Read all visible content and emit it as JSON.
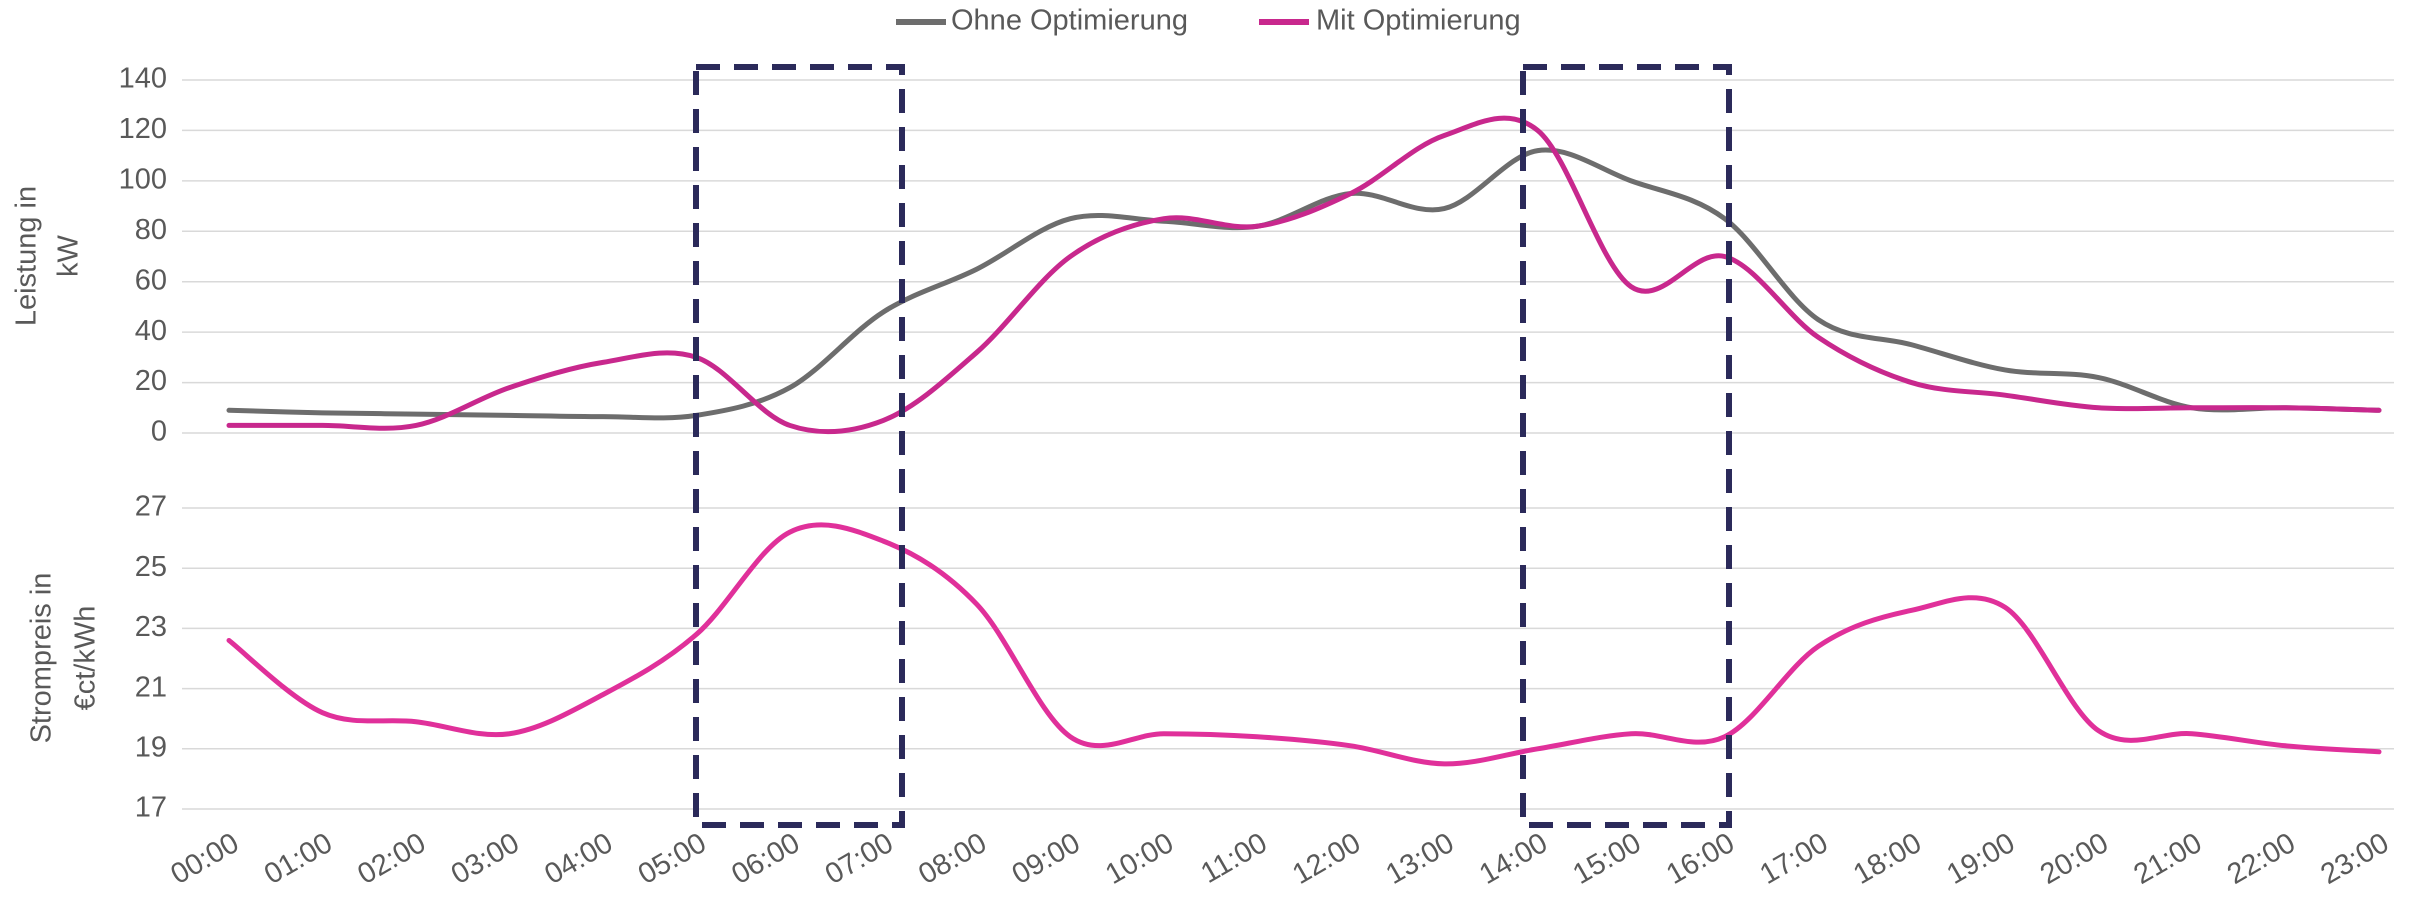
{
  "chart_data": [
    {
      "type": "line",
      "ylabel": [
        "Leistung in",
        "kW"
      ],
      "categories": [
        "00:00",
        "01:00",
        "02:00",
        "03:00",
        "04:00",
        "05:00",
        "06:00",
        "07:00",
        "08:00",
        "09:00",
        "10:00",
        "11:00",
        "12:00",
        "13:00",
        "14:00",
        "15:00",
        "16:00",
        "17:00",
        "18:00",
        "19:00",
        "20:00",
        "21:00",
        "22:00",
        "23:00"
      ],
      "series": [
        {
          "name": "Ohne Optimierung",
          "color": "#6d6d6d",
          "values": [
            9,
            8,
            7.5,
            7,
            6.5,
            7,
            18,
            48,
            65,
            85,
            84,
            82,
            95,
            89,
            112,
            100,
            85,
            45,
            35,
            25,
            22,
            10,
            10,
            9
          ]
        },
        {
          "name": "Mit Optimierung",
          "color": "#c8288d",
          "values": [
            3,
            3,
            3,
            18,
            28,
            30,
            3,
            5,
            32,
            70,
            85,
            82,
            95,
            118,
            120,
            58,
            70,
            38,
            20,
            15,
            10,
            10,
            10,
            9
          ]
        }
      ],
      "ylim": [
        0,
        140
      ],
      "yticks": [
        0,
        20,
        40,
        60,
        80,
        100,
        120,
        140
      ],
      "grid": true,
      "legend": "top"
    },
    {
      "type": "line",
      "ylabel": [
        "Strompreis in",
        "€ct/kWh"
      ],
      "categories": [
        "00:00",
        "01:00",
        "02:00",
        "03:00",
        "04:00",
        "05:00",
        "06:00",
        "07:00",
        "08:00",
        "09:00",
        "10:00",
        "11:00",
        "12:00",
        "13:00",
        "14:00",
        "15:00",
        "16:00",
        "17:00",
        "18:00",
        "19:00",
        "20:00",
        "21:00",
        "22:00",
        "23:00"
      ],
      "series": [
        {
          "color": "#e0309a",
          "values": [
            22.6,
            20.2,
            19.9,
            19.5,
            20.8,
            22.8,
            26.2,
            25.9,
            23.8,
            19.4,
            19.5,
            19.4,
            19.1,
            18.5,
            19.0,
            19.5,
            19.4,
            22.4,
            23.6,
            23.7,
            19.6,
            19.5,
            19.1,
            18.9
          ]
        }
      ],
      "ylim": [
        17,
        27
      ],
      "yticks": [
        17,
        19,
        21,
        23,
        25,
        27
      ],
      "grid": true
    }
  ]
}
